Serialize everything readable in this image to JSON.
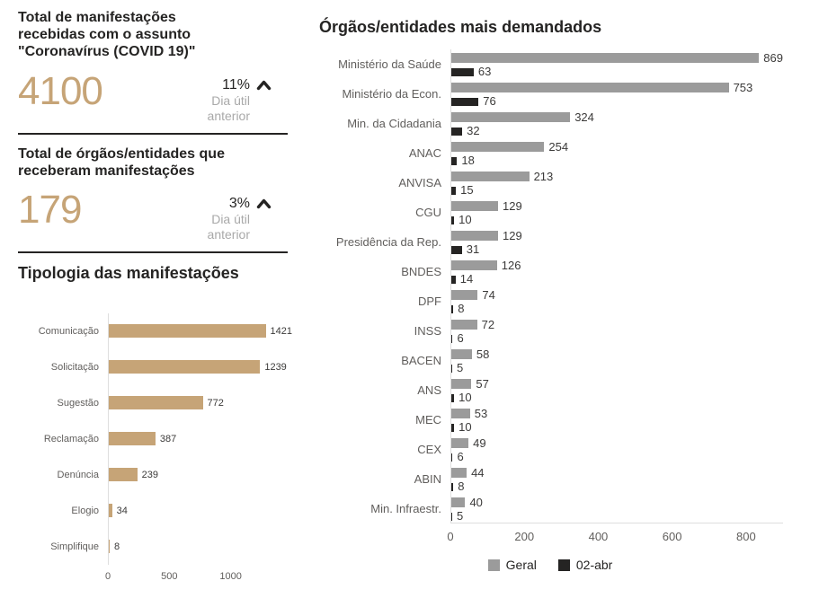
{
  "kpi_cards": [
    {
      "title": "Total de manifestações recebidas com o assunto \"Coronavírus (COVID 19)\"",
      "value": "4100",
      "delta_pct": "11%",
      "delta_note": "Dia útil anterior",
      "trend": "up"
    },
    {
      "title": "Total de órgãos/entidades que receberam manifestações",
      "value": "179",
      "delta_pct": "3%",
      "delta_note": "Dia útil anterior",
      "trend": "up"
    }
  ],
  "colors": {
    "accent": "#C6A477",
    "geral_bar": "#9B9B9B",
    "date_bar": "#252423",
    "muted_text": "#A9A9A9",
    "axis_text": "#605E5C"
  },
  "chart_data": [
    {
      "type": "bar",
      "orientation": "horizontal",
      "title": "Tipologia das manifestações",
      "categories": [
        "Comunicação",
        "Solicitação",
        "Sugestão",
        "Reclamação",
        "Denúncia",
        "Elogio",
        "Simplifique"
      ],
      "values": [
        1421,
        1239,
        772,
        387,
        239,
        34,
        8
      ],
      "bar_color": "#C6A477",
      "xlim": [
        0,
        1500
      ],
      "xticks": [
        0,
        500,
        1000
      ],
      "grid": false,
      "legend": "none"
    },
    {
      "type": "bar",
      "orientation": "horizontal",
      "title": "Órgãos/entidades mais demandados",
      "categories": [
        "Ministério da Saúde",
        "Ministério da Econ.",
        "Min. da Cidadania",
        "ANAC",
        "ANVISA",
        "CGU",
        "Presidência da Rep.",
        "BNDES",
        "DPF",
        "INSS",
        "BACEN",
        "ANS",
        "MEC",
        "CEX",
        "ABIN",
        "Min. Infraestr."
      ],
      "series": [
        {
          "name": "Geral",
          "color": "#9B9B9B",
          "values": [
            869,
            753,
            324,
            254,
            213,
            129,
            129,
            126,
            74,
            72,
            58,
            57,
            53,
            49,
            44,
            40
          ]
        },
        {
          "name": "02-abr",
          "color": "#252423",
          "values": [
            63,
            76,
            32,
            18,
            15,
            10,
            31,
            14,
            8,
            6,
            5,
            10,
            10,
            6,
            8,
            5
          ]
        }
      ],
      "xlim": [
        0,
        900
      ],
      "xticks": [
        0,
        200,
        400,
        600,
        800
      ],
      "grid": false,
      "legend": "bottom"
    }
  ]
}
